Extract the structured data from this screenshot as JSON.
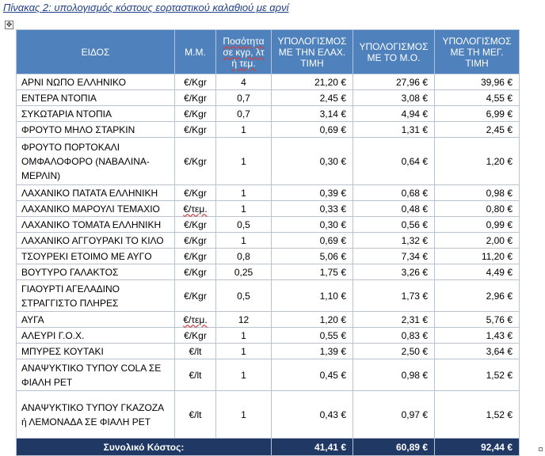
{
  "caption": "Πίνακας 2: υπολογισμός κόστους εορταστικού καλαθιού με αρνί",
  "move_handle_glyph": "✥",
  "table": {
    "headers": {
      "item": "ΕΙΔΟΣ",
      "unit": "Μ.Μ.",
      "qty": "Ποσότητα σε κγρ, λτ ή τεμ.",
      "min": "ΥΠΟΛΟΓΙΣΜΟΣ ΜΕ ΤΗΝ ΕΛΑΧ. ΤΙΜΗ",
      "avg": "ΥΠΟΛΟΓΙΣΜΟΣ ΜΕ ΤΟ Μ.Ο.",
      "max": "ΥΠΟΛΟΓΙΣΜΟΣ ΜΕ ΤΗ ΜΕΓ. ΤΙΜΗ"
    },
    "rows": [
      {
        "item": "ΑΡΝΙ ΝΩΠΟ ΕΛΛΗΝΙΚΟ",
        "unit": "€/Kgr",
        "qty": "4",
        "min": "21,20 €",
        "avg": "27,96 €",
        "max": "39,96 €"
      },
      {
        "item": "ΕΝΤΕΡΑ ΝΤΟΠΙΑ",
        "unit": "€/Kgr",
        "qty": "0,7",
        "min": "2,45 €",
        "avg": "3,08 €",
        "max": "4,55 €"
      },
      {
        "item": "ΣΥΚΩΤΑΡΙΑ ΝΤΟΠΙΑ",
        "unit": "€/Kgr",
        "qty": "0,7",
        "min": "3,14 €",
        "avg": "4,94 €",
        "max": "6,99 €"
      },
      {
        "item": "ΦΡΟΥΤΟ ΜΗΛΟ ΣΤΑΡΚΙΝ",
        "unit": "€/Kgr",
        "qty": "1",
        "min": "0,69 €",
        "avg": "1,31 €",
        "max": "2,45 €"
      },
      {
        "item": "ΦΡΟΥΤΟ ΠΟΡΤΟΚΑΛΙ ΟΜΦΑΛΟΦΟΡΟ (ΝΑΒΑΛΙΝΑ-ΜΕΡΛΙΝ)",
        "unit": "€/Kgr",
        "qty": "1",
        "min": "0,30 €",
        "avg": "0,64 €",
        "max": "1,20 €"
      },
      {
        "item": "ΛΑΧΑΝΙΚΟ ΠΑΤΑΤΑ ΕΛΛΗΝΙΚΗ",
        "unit": "€/Kgr",
        "qty": "1",
        "min": "0,39 €",
        "avg": "0,68 €",
        "max": "0,98 €"
      },
      {
        "item": "ΛΑΧΑΝΙΚΟ ΜΑΡΟΥΛΙ ΤΕΜΑΧΙΟ",
        "unit": "€/τεμ.",
        "qty": "1",
        "min": "0,33 €",
        "avg": "0,48 €",
        "max": "0,80 €"
      },
      {
        "item": "ΛΑΧΑΝΙΚΟ ΤΟΜΑΤΑ ΕΛΛΗΝΙΚΗ",
        "unit": "€/Kgr",
        "qty": "0,5",
        "min": "0,30 €",
        "avg": "0,56 €",
        "max": "0,99 €"
      },
      {
        "item": "ΛΑΧΑΝΙΚΟ ΑΓΓΟΥΡΑΚΙ ΤΟ ΚΙΛΟ",
        "unit": "€/Kgr",
        "qty": "1",
        "min": "0,69 €",
        "avg": "1,32 €",
        "max": "2,00 €"
      },
      {
        "item": "ΤΣΟΥΡΕΚΙ ΕΤΟΙΜΟ ΜΕ ΑΥΓΟ",
        "unit": "€/Kgr",
        "qty": "0,8",
        "min": "5,06 €",
        "avg": "7,34 €",
        "max": "11,20 €"
      },
      {
        "item": "ΒΟΥΤΥΡΟ ΓΑΛΑΚΤΟΣ",
        "unit": "€/Kgr",
        "qty": "0,25",
        "min": "1,75 €",
        "avg": "3,26 €",
        "max": "4,49 €"
      },
      {
        "item": "ΓΙΑΟΥΡΤΙ ΑΓΕΛΑΔΙΝΟ ΣΤΡΑΓΓΙΣΤΟ ΠΛΗΡΕΣ",
        "unit": "€/Kgr",
        "qty": "0,5",
        "min": "1,10 €",
        "avg": "1,73 €",
        "max": "2,96 €"
      },
      {
        "item": "ΑΥΓΑ",
        "unit": "€/τεμ.",
        "qty": "12",
        "min": "1,20 €",
        "avg": "2,31 €",
        "max": "5,76 €"
      },
      {
        "item": "ΑΛΕΥΡΙ Γ.Ο.Χ.",
        "unit": "€/Kgr",
        "qty": "1",
        "min": "0,55 €",
        "avg": "0,83 €",
        "max": "1,43 €"
      },
      {
        "item": "ΜΠΥΡΕΣ ΚΟΥΤΑΚΙ",
        "unit": "€/lt",
        "qty": "1",
        "min": "1,39 €",
        "avg": "2,50 €",
        "max": "3,64 €"
      },
      {
        "item": "ΑΝΑΨΥΚΤΙΚΟ ΤΥΠΟΥ COLA ΣΕ ΦΙΑΛΗ PET",
        "unit": "€/lt",
        "qty": "1",
        "min": "0,45 €",
        "avg": "0,98 €",
        "max": "1,52 €"
      },
      {
        "item": "ΑΝΑΨΥΚΤΙΚΟ ΤΥΠΟΥ ΓΚΑΖΟΖΑ ή ΛΕΜΟΝΑΔΑ ΣΕ ΦΙΑΛΗ PET",
        "unit": "€/lt",
        "qty": "1",
        "min": "0,43 €",
        "avg": "0,97 €",
        "max": "1,52 €"
      }
    ],
    "total": {
      "label": "Συνολικό Κόστος:",
      "min": "41,41 €",
      "avg": "60,89 €",
      "max": "92,44 €"
    }
  }
}
